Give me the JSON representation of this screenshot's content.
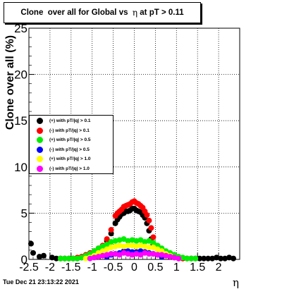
{
  "title": {
    "prefix": "Clone  over all for Global vs  ",
    "greek": "η",
    "suffix": " at pT > 0.11"
  },
  "footer": "Tue Dec 21 23:13:22 2021",
  "chart_data": {
    "type": "scatter",
    "xlabel": "η",
    "ylabel": "Clone  over all (%)",
    "xlim": [
      -2.5,
      2.5
    ],
    "ylim": [
      0,
      25
    ],
    "xticks": [
      "-2.5",
      "-2",
      "-1.5",
      "-1",
      "-0.5",
      "0",
      "0.5",
      "1",
      "1.5",
      "2"
    ],
    "yticks": [
      "0",
      "5",
      "10",
      "15",
      "20",
      "25"
    ],
    "grid": true,
    "legend_position": "left-middle",
    "series": [
      {
        "name": "(+) with pT/|q| > 0.1",
        "color": "#000000",
        "x": [
          -2.45,
          -2.4,
          -2.25,
          -2.15,
          -1.95,
          -1.85,
          -1.75,
          -1.65,
          -1.55,
          -1.45,
          -1.35,
          -1.25,
          -1.15,
          -1.05,
          -0.95,
          -0.85,
          -0.75,
          -0.65,
          -0.55,
          -0.45,
          -0.4,
          -0.35,
          -0.3,
          -0.25,
          -0.2,
          -0.15,
          -0.1,
          -0.05,
          0.0,
          0.05,
          0.1,
          0.15,
          0.2,
          0.25,
          0.3,
          0.35,
          0.4,
          0.45,
          0.55,
          0.65,
          0.75,
          0.85,
          0.95,
          1.05,
          1.15,
          1.25,
          1.35,
          1.45,
          1.55,
          1.65,
          1.75,
          1.85,
          1.95,
          2.05,
          2.15,
          2.25,
          2.35
        ],
        "y": [
          1.7,
          0.7,
          0.3,
          0.4,
          0.2,
          0.1,
          0.1,
          0.1,
          0.1,
          0.1,
          0.1,
          0.2,
          0.4,
          0.6,
          0.9,
          1.1,
          1.4,
          2.0,
          2.8,
          3.9,
          4.3,
          4.6,
          4.9,
          5.0,
          5.2,
          5.2,
          5.3,
          5.5,
          5.5,
          5.3,
          5.2,
          5.1,
          4.8,
          4.5,
          3.9,
          3.1,
          2.2,
          1.6,
          1.2,
          0.9,
          0.6,
          0.3,
          0.2,
          0.1,
          0.1,
          0.1,
          0.1,
          0.1,
          0.1,
          0.1,
          0.1,
          0.1,
          0.2,
          0.1,
          0.1,
          0.2,
          0.1
        ]
      },
      {
        "name": "(-) with pT/|q| > 0.1",
        "color": "#ff0000",
        "x": [
          -1.75,
          -1.65,
          -1.55,
          -1.45,
          -1.35,
          -1.25,
          -1.15,
          -1.05,
          -0.95,
          -0.85,
          -0.75,
          -0.65,
          -0.55,
          -0.45,
          -0.4,
          -0.35,
          -0.3,
          -0.25,
          -0.2,
          -0.15,
          -0.1,
          -0.05,
          0.0,
          0.05,
          0.1,
          0.15,
          0.2,
          0.25,
          0.3,
          0.35,
          0.4,
          0.45,
          0.55,
          0.65,
          0.75,
          0.85,
          0.95,
          1.05,
          1.15,
          1.25,
          1.35
        ],
        "y": [
          0.1,
          0.1,
          0.1,
          0.1,
          0.2,
          0.3,
          0.5,
          0.7,
          0.9,
          1.2,
          1.5,
          2.2,
          3.2,
          4.7,
          5.0,
          5.2,
          5.4,
          5.7,
          5.8,
          5.9,
          6.0,
          6.2,
          6.3,
          6.1,
          6.0,
          5.8,
          5.6,
          5.2,
          4.8,
          4.2,
          3.4,
          2.4,
          1.5,
          1.0,
          0.7,
          0.5,
          0.3,
          0.2,
          0.1,
          0.1,
          0.1
        ]
      },
      {
        "name": "(+) with pT/|q| > 0.5",
        "color": "#00ee00",
        "x": [
          -1.75,
          -1.65,
          -1.55,
          -1.45,
          -1.35,
          -1.25,
          -1.15,
          -1.05,
          -0.95,
          -0.85,
          -0.75,
          -0.65,
          -0.55,
          -0.45,
          -0.35,
          -0.25,
          -0.15,
          -0.05,
          0.05,
          0.15,
          0.25,
          0.35,
          0.45,
          0.55,
          0.65,
          0.75,
          0.85,
          0.95,
          1.05,
          1.15,
          1.25,
          1.35,
          1.45
        ],
        "y": [
          0.1,
          0.1,
          0.1,
          0.1,
          0.1,
          0.2,
          0.4,
          0.6,
          0.9,
          1.2,
          1.4,
          1.6,
          1.9,
          2.0,
          2.1,
          2.2,
          2.0,
          2.1,
          2.0,
          2.1,
          1.9,
          2.0,
          1.8,
          1.5,
          1.2,
          0.9,
          0.7,
          0.5,
          0.3,
          0.2,
          0.1,
          0.1,
          0.1
        ]
      },
      {
        "name": "(-) with pT/|q| > 0.5",
        "color": "#0000ff",
        "x": [
          -0.65,
          -0.55,
          -0.45,
          -0.35,
          -0.25,
          -0.15,
          -0.05,
          0.05,
          0.15,
          0.25,
          0.35,
          0.45,
          0.55,
          0.65
        ],
        "y": [
          0.3,
          0.5,
          0.6,
          0.7,
          0.9,
          0.9,
          0.8,
          0.8,
          0.9,
          0.8,
          0.7,
          0.6,
          0.5,
          0.3
        ]
      },
      {
        "name": "(+) with pT/|q| > 1.0",
        "color": "#ffff00",
        "x": [
          -1.15,
          -1.05,
          -0.95,
          -0.85,
          -0.75,
          -0.65,
          -0.55,
          -0.45,
          -0.35,
          -0.25,
          -0.15,
          -0.05,
          0.05,
          0.15,
          0.25,
          0.35,
          0.45,
          0.55,
          0.65,
          0.75,
          0.85,
          0.95,
          1.05
        ],
        "y": [
          0.1,
          0.2,
          0.4,
          0.7,
          0.9,
          1.1,
          1.3,
          1.4,
          1.5,
          1.4,
          1.5,
          1.5,
          1.4,
          1.5,
          1.4,
          1.3,
          1.3,
          1.1,
          0.9,
          0.6,
          0.4,
          0.2,
          0.1
        ]
      },
      {
        "name": "(-) with pT/|q| > 1.0",
        "color": "#ff00ff",
        "x": [
          -1.05,
          -0.95,
          -0.85,
          -0.75,
          -0.65,
          -0.55,
          -0.45,
          -0.35,
          -0.25,
          -0.15,
          -0.05,
          0.05,
          0.15,
          0.25,
          0.35,
          0.45,
          0.55,
          0.65,
          0.75,
          0.85,
          0.95,
          1.05
        ],
        "y": [
          0.1,
          0.2,
          0.3,
          0.4,
          0.5,
          0.6,
          0.6,
          0.5,
          0.7,
          0.6,
          0.5,
          0.6,
          0.5,
          0.7,
          0.6,
          0.6,
          0.5,
          0.5,
          0.4,
          0.3,
          0.2,
          0.1
        ]
      }
    ]
  }
}
